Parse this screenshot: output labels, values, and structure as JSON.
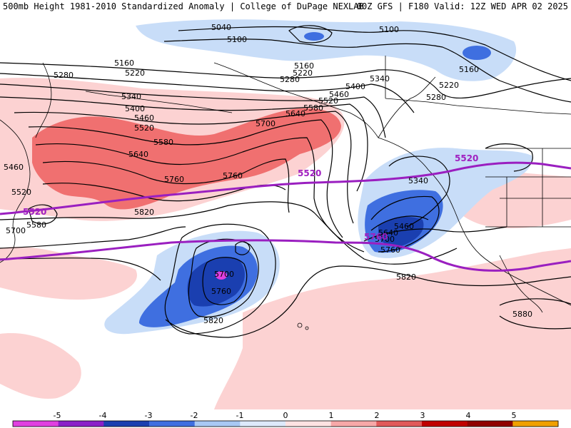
{
  "header": {
    "left_text": "500mb Height 1981-2010 Standardized Anomaly | College of DuPage NEXLAB",
    "right_text": "00Z GFS | F180 Valid: 12Z WED APR 02 2025"
  },
  "colors": {
    "neg5": "#e040e0",
    "neg4": "#8a20c8",
    "neg3": "#1a3fb0",
    "neg2": "#3f6fe0",
    "neg1": "#c8ddf8",
    "pos1": "#fcd2d2",
    "pos2": "#f07070",
    "thick": "#9a1fc0"
  },
  "contours": {
    "labels": [
      "5040",
      "5100",
      "5100",
      "5160",
      "5160",
      "5160",
      "5220",
      "5220",
      "5220",
      "5280",
      "5280",
      "5280",
      "5340",
      "5340",
      "5340",
      "5400",
      "5400",
      "5460",
      "5460",
      "5520",
      "5520",
      "5520",
      "5580",
      "5580",
      "5580",
      "5640",
      "5640",
      "5640",
      "5700",
      "5700",
      "5700",
      "5700",
      "5760",
      "5760",
      "5760",
      "5760",
      "5820",
      "5820",
      "5820",
      "5880",
      "5460",
      "5520",
      "5580",
      "5640",
      "5700",
      "5760",
      "5460",
      "5580"
    ]
  },
  "thickness_labels": [
    "5520",
    "5520",
    "5520",
    "5760"
  ],
  "colorbar": {
    "ticks": [
      "-5",
      "-4",
      "-3",
      "-2",
      "-1",
      "0",
      "1",
      "2",
      "3",
      "4",
      "5"
    ],
    "colors": [
      "#e040e0",
      "#8a20c8",
      "#1a3fb0",
      "#3f6fe0",
      "#a8c8f4",
      "#dde9fb",
      "#fde2e2",
      "#f7a8a8",
      "#e05a5a",
      "#c00000",
      "#900000",
      "#f0a000"
    ]
  }
}
